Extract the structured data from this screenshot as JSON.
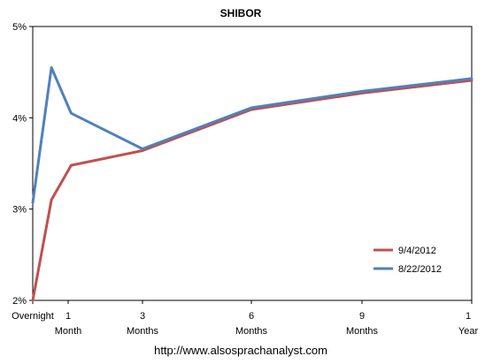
{
  "chart_data": {
    "type": "line",
    "title": "SHIBOR",
    "x_ticks": [
      [
        "Overnight"
      ],
      [
        "1",
        "Month"
      ],
      [
        "3",
        "Months"
      ],
      [
        "6",
        "Months"
      ],
      [
        "9",
        "Months"
      ],
      [
        "1",
        "Year"
      ]
    ],
    "ylim": [
      2,
      5
    ],
    "yticks": [
      2,
      3,
      4,
      5
    ],
    "ytick_labels": [
      "2%",
      "3%",
      "4%",
      "5%"
    ],
    "grid": false,
    "legend_position": "lower-right",
    "series": [
      {
        "name": "9/4/2012",
        "color": "#c0504d",
        "points": [
          {
            "x": 0.0,
            "y": 2.0
          },
          {
            "x": 0.17,
            "y": 3.1
          },
          {
            "x": 0.35,
            "y": 3.48
          },
          {
            "x": 1.0,
            "y": 3.64
          },
          {
            "x": 2.0,
            "y": 4.09
          },
          {
            "x": 3.0,
            "y": 4.27
          },
          {
            "x": 4.0,
            "y": 4.41
          }
        ]
      },
      {
        "name": "8/22/2012",
        "color": "#4f81bd",
        "points": [
          {
            "x": 0.0,
            "y": 3.07
          },
          {
            "x": 0.17,
            "y": 4.55
          },
          {
            "x": 0.35,
            "y": 4.05
          },
          {
            "x": 1.0,
            "y": 3.66
          },
          {
            "x": 2.0,
            "y": 4.11
          },
          {
            "x": 3.0,
            "y": 4.29
          },
          {
            "x": 4.0,
            "y": 4.43
          }
        ]
      }
    ]
  },
  "footer": {
    "url_text": "http://www.alsosprachanalyst.com"
  }
}
